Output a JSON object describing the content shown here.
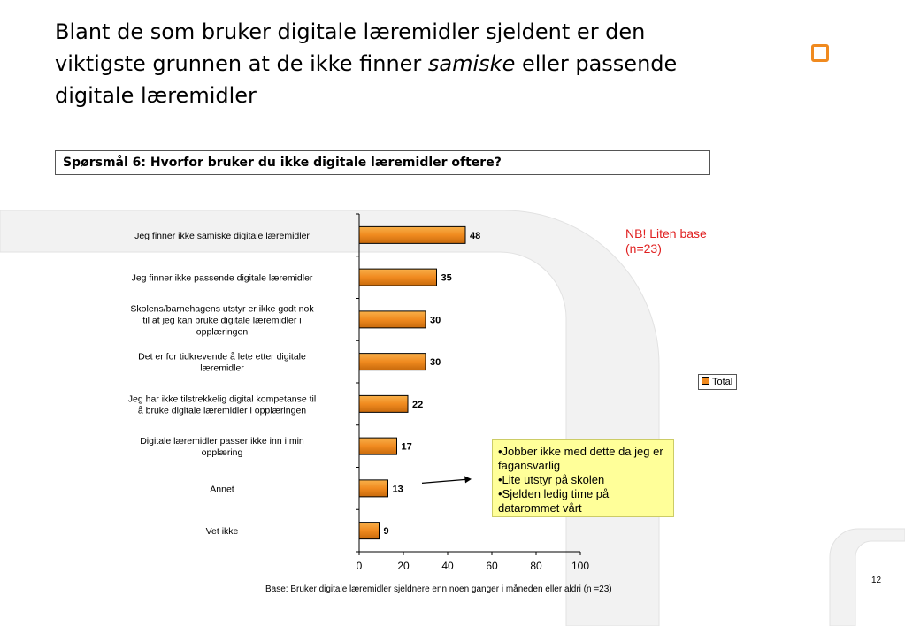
{
  "title": {
    "line1": "Blant de som bruker digitale læremidler sjeldent er den",
    "line2_pre": "viktigste grunnen at de ikke finner ",
    "line2_em": "samiske",
    "line2_post": " eller passende",
    "line3": "digitale læremidler"
  },
  "question": "Spørsmål 6: Hvorfor bruker du ikke digitale læremidler oftere?",
  "note": {
    "line1": "NB! Liten base",
    "line2": "(n=23)"
  },
  "callout": {
    "items": [
      "•Jobber ikke med dette da jeg er fagansvarlig",
      "•Lite utstyr på skolen",
      "•Sjelden ledig time på datarommet vårt"
    ]
  },
  "base_text": "Base:  Bruker digitale læremidler sjeldnere enn noen ganger i måneden eller aldri (n =23)",
  "page_number": "12",
  "colors": {
    "bar": "#f08a1f",
    "note": "#e02020",
    "callout_bg": "#ffff99",
    "logo": "#f08a1f"
  },
  "chart_data": {
    "type": "bar",
    "orientation": "horizontal",
    "categories": [
      [
        "Jeg finner ikke samiske digitale læremidler"
      ],
      [
        "Jeg finner ikke passende digitale læremidler"
      ],
      [
        "Skolens/barnehagens utstyr er ikke godt nok",
        "til at jeg kan bruke digitale læremidler i",
        "opplæringen"
      ],
      [
        "Det er for tidkrevende å lete etter digitale",
        "læremidler"
      ],
      [
        "Jeg har ikke tilstrekkelig digital kompetanse til",
        "å bruke digitale læremidler i opplæringen"
      ],
      [
        "Digitale læremidler passer ikke inn i min",
        "opplæring"
      ],
      [
        "Annet"
      ],
      [
        "Vet ikke"
      ]
    ],
    "series": [
      {
        "name": "Total",
        "values": [
          48,
          35,
          30,
          30,
          22,
          17,
          13,
          9
        ]
      }
    ],
    "xlim": [
      0,
      100
    ],
    "xticks": [
      "0",
      "20",
      "40",
      "60",
      "80",
      "100"
    ],
    "highlighted_category_index": 0,
    "legend": "right"
  }
}
